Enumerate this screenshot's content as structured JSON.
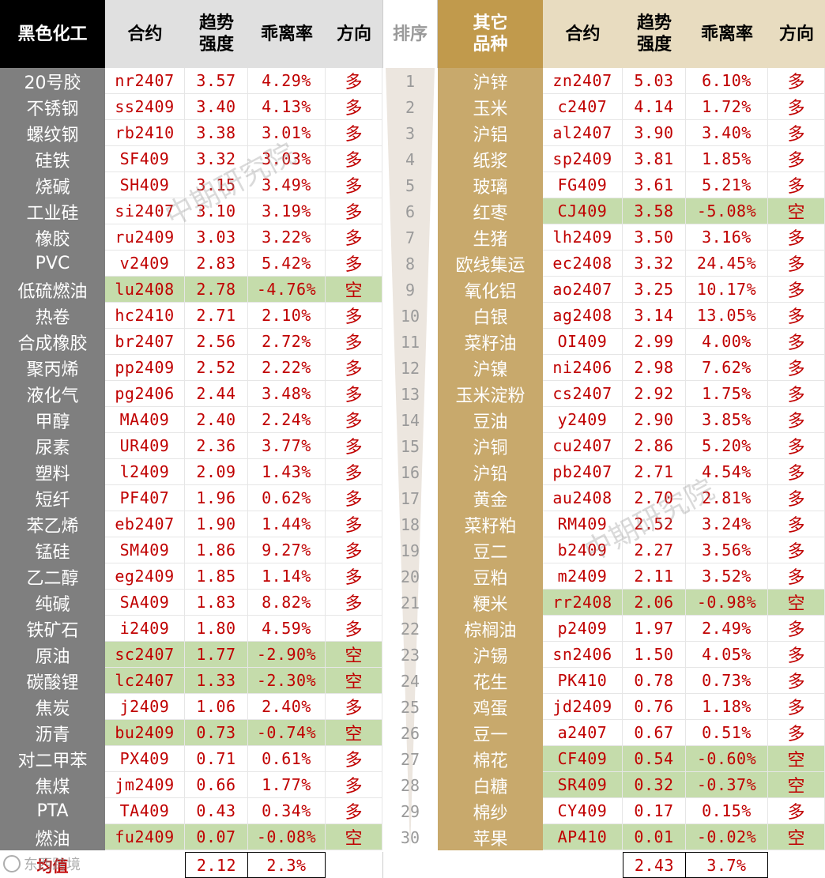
{
  "headers": {
    "left_category": "黑色化工",
    "contract": "合约",
    "strength_line1": "趋势",
    "strength_line2": "强度",
    "deviation": "乖离率",
    "direction": "方向",
    "rank": "排序",
    "right_category_line1": "其它",
    "right_category_line2": "品种"
  },
  "colors": {
    "left_header_bg": "#000000",
    "left_name_bg": "#7f7f7f",
    "right_header_bg": "#c19a4c",
    "right_name_bg": "#c8a96c",
    "short_highlight": "#c5dcab",
    "value_text": "#c00000"
  },
  "rows": [
    {
      "rank": "1",
      "l_name": "20号胶",
      "l_code": "nr2407",
      "l_str": "3.57",
      "l_dev": "4.29%",
      "l_dir": "多",
      "l_short": false,
      "r_name": "沪锌",
      "r_code": "zn2407",
      "r_str": "5.03",
      "r_dev": "6.10%",
      "r_dir": "多",
      "r_short": false
    },
    {
      "rank": "2",
      "l_name": "不锈钢",
      "l_code": "ss2409",
      "l_str": "3.40",
      "l_dev": "4.13%",
      "l_dir": "多",
      "l_short": false,
      "r_name": "玉米",
      "r_code": "c2407",
      "r_str": "4.14",
      "r_dev": "1.72%",
      "r_dir": "多",
      "r_short": false
    },
    {
      "rank": "3",
      "l_name": "螺纹钢",
      "l_code": "rb2410",
      "l_str": "3.38",
      "l_dev": "3.01%",
      "l_dir": "多",
      "l_short": false,
      "r_name": "沪铝",
      "r_code": "al2407",
      "r_str": "3.90",
      "r_dev": "3.40%",
      "r_dir": "多",
      "r_short": false
    },
    {
      "rank": "4",
      "l_name": "硅铁",
      "l_code": "SF409",
      "l_str": "3.32",
      "l_dev": "3.03%",
      "l_dir": "多",
      "l_short": false,
      "r_name": "纸浆",
      "r_code": "sp2409",
      "r_str": "3.81",
      "r_dev": "1.85%",
      "r_dir": "多",
      "r_short": false
    },
    {
      "rank": "5",
      "l_name": "烧碱",
      "l_code": "SH409",
      "l_str": "3.15",
      "l_dev": "3.49%",
      "l_dir": "多",
      "l_short": false,
      "r_name": "玻璃",
      "r_code": "FG409",
      "r_str": "3.61",
      "r_dev": "5.21%",
      "r_dir": "多",
      "r_short": false
    },
    {
      "rank": "6",
      "l_name": "工业硅",
      "l_code": "si2407",
      "l_str": "3.10",
      "l_dev": "3.19%",
      "l_dir": "多",
      "l_short": false,
      "r_name": "红枣",
      "r_code": "CJ409",
      "r_str": "3.58",
      "r_dev": "-5.08%",
      "r_dir": "空",
      "r_short": true
    },
    {
      "rank": "7",
      "l_name": "橡胶",
      "l_code": "ru2409",
      "l_str": "3.03",
      "l_dev": "3.22%",
      "l_dir": "多",
      "l_short": false,
      "r_name": "生猪",
      "r_code": "lh2409",
      "r_str": "3.50",
      "r_dev": "3.16%",
      "r_dir": "多",
      "r_short": false
    },
    {
      "rank": "8",
      "l_name": "PVC",
      "l_code": "v2409",
      "l_str": "2.83",
      "l_dev": "5.42%",
      "l_dir": "多",
      "l_short": false,
      "r_name": "欧线集运",
      "r_code": "ec2408",
      "r_str": "3.32",
      "r_dev": "24.45%",
      "r_dir": "多",
      "r_short": false
    },
    {
      "rank": "9",
      "l_name": "低硫燃油",
      "l_code": "lu2408",
      "l_str": "2.78",
      "l_dev": "-4.76%",
      "l_dir": "空",
      "l_short": true,
      "r_name": "氧化铝",
      "r_code": "ao2407",
      "r_str": "3.25",
      "r_dev": "10.17%",
      "r_dir": "多",
      "r_short": false
    },
    {
      "rank": "10",
      "l_name": "热卷",
      "l_code": "hc2410",
      "l_str": "2.71",
      "l_dev": "2.10%",
      "l_dir": "多",
      "l_short": false,
      "r_name": "白银",
      "r_code": "ag2408",
      "r_str": "3.14",
      "r_dev": "13.05%",
      "r_dir": "多",
      "r_short": false
    },
    {
      "rank": "11",
      "l_name": "合成橡胶",
      "l_code": "br2407",
      "l_str": "2.56",
      "l_dev": "2.72%",
      "l_dir": "多",
      "l_short": false,
      "r_name": "菜籽油",
      "r_code": "OI409",
      "r_str": "2.99",
      "r_dev": "4.00%",
      "r_dir": "多",
      "r_short": false
    },
    {
      "rank": "12",
      "l_name": "聚丙烯",
      "l_code": "pp2409",
      "l_str": "2.52",
      "l_dev": "2.22%",
      "l_dir": "多",
      "l_short": false,
      "r_name": "沪镍",
      "r_code": "ni2406",
      "r_str": "2.98",
      "r_dev": "7.62%",
      "r_dir": "多",
      "r_short": false
    },
    {
      "rank": "13",
      "l_name": "液化气",
      "l_code": "pg2406",
      "l_str": "2.44",
      "l_dev": "3.48%",
      "l_dir": "多",
      "l_short": false,
      "r_name": "玉米淀粉",
      "r_code": "cs2407",
      "r_str": "2.92",
      "r_dev": "1.75%",
      "r_dir": "多",
      "r_short": false
    },
    {
      "rank": "14",
      "l_name": "甲醇",
      "l_code": "MA409",
      "l_str": "2.40",
      "l_dev": "2.24%",
      "l_dir": "多",
      "l_short": false,
      "r_name": "豆油",
      "r_code": "y2409",
      "r_str": "2.90",
      "r_dev": "3.85%",
      "r_dir": "多",
      "r_short": false
    },
    {
      "rank": "15",
      "l_name": "尿素",
      "l_code": "UR409",
      "l_str": "2.36",
      "l_dev": "3.77%",
      "l_dir": "多",
      "l_short": false,
      "r_name": "沪铜",
      "r_code": "cu2407",
      "r_str": "2.86",
      "r_dev": "5.20%",
      "r_dir": "多",
      "r_short": false
    },
    {
      "rank": "16",
      "l_name": "塑料",
      "l_code": "l2409",
      "l_str": "2.09",
      "l_dev": "1.43%",
      "l_dir": "多",
      "l_short": false,
      "r_name": "沪铅",
      "r_code": "pb2407",
      "r_str": "2.71",
      "r_dev": "4.54%",
      "r_dir": "多",
      "r_short": false
    },
    {
      "rank": "17",
      "l_name": "短纤",
      "l_code": "PF407",
      "l_str": "1.96",
      "l_dev": "0.62%",
      "l_dir": "多",
      "l_short": false,
      "r_name": "黄金",
      "r_code": "au2408",
      "r_str": "2.70",
      "r_dev": "2.81%",
      "r_dir": "多",
      "r_short": false
    },
    {
      "rank": "18",
      "l_name": "苯乙烯",
      "l_code": "eb2407",
      "l_str": "1.90",
      "l_dev": "1.44%",
      "l_dir": "多",
      "l_short": false,
      "r_name": "菜籽粕",
      "r_code": "RM409",
      "r_str": "2.52",
      "r_dev": "3.24%",
      "r_dir": "多",
      "r_short": false
    },
    {
      "rank": "19",
      "l_name": "锰硅",
      "l_code": "SM409",
      "l_str": "1.86",
      "l_dev": "9.27%",
      "l_dir": "多",
      "l_short": false,
      "r_name": "豆二",
      "r_code": "b2409",
      "r_str": "2.27",
      "r_dev": "3.56%",
      "r_dir": "多",
      "r_short": false
    },
    {
      "rank": "20",
      "l_name": "乙二醇",
      "l_code": "eg2409",
      "l_str": "1.85",
      "l_dev": "1.14%",
      "l_dir": "多",
      "l_short": false,
      "r_name": "豆粕",
      "r_code": "m2409",
      "r_str": "2.11",
      "r_dev": "3.52%",
      "r_dir": "多",
      "r_short": false
    },
    {
      "rank": "21",
      "l_name": "纯碱",
      "l_code": "SA409",
      "l_str": "1.83",
      "l_dev": "8.82%",
      "l_dir": "多",
      "l_short": false,
      "r_name": "粳米",
      "r_code": "rr2408",
      "r_str": "2.06",
      "r_dev": "-0.98%",
      "r_dir": "空",
      "r_short": true
    },
    {
      "rank": "22",
      "l_name": "铁矿石",
      "l_code": "i2409",
      "l_str": "1.80",
      "l_dev": "4.59%",
      "l_dir": "多",
      "l_short": false,
      "r_name": "棕榈油",
      "r_code": "p2409",
      "r_str": "1.97",
      "r_dev": "2.49%",
      "r_dir": "多",
      "r_short": false
    },
    {
      "rank": "23",
      "l_name": "原油",
      "l_code": "sc2407",
      "l_str": "1.77",
      "l_dev": "-2.90%",
      "l_dir": "空",
      "l_short": true,
      "r_name": "沪锡",
      "r_code": "sn2406",
      "r_str": "1.50",
      "r_dev": "4.05%",
      "r_dir": "多",
      "r_short": false
    },
    {
      "rank": "24",
      "l_name": "碳酸锂",
      "l_code": "lc2407",
      "l_str": "1.33",
      "l_dev": "-2.30%",
      "l_dir": "空",
      "l_short": true,
      "r_name": "花生",
      "r_code": "PK410",
      "r_str": "0.78",
      "r_dev": "0.73%",
      "r_dir": "多",
      "r_short": false
    },
    {
      "rank": "25",
      "l_name": "焦炭",
      "l_code": "j2409",
      "l_str": "1.06",
      "l_dev": "2.40%",
      "l_dir": "多",
      "l_short": false,
      "r_name": "鸡蛋",
      "r_code": "jd2409",
      "r_str": "0.76",
      "r_dev": "1.18%",
      "r_dir": "多",
      "r_short": false
    },
    {
      "rank": "26",
      "l_name": "沥青",
      "l_code": "bu2409",
      "l_str": "0.73",
      "l_dev": "-0.74%",
      "l_dir": "空",
      "l_short": true,
      "r_name": "豆一",
      "r_code": "a2407",
      "r_str": "0.67",
      "r_dev": "0.51%",
      "r_dir": "多",
      "r_short": false
    },
    {
      "rank": "27",
      "l_name": "对二甲苯",
      "l_code": "PX409",
      "l_str": "0.71",
      "l_dev": "0.61%",
      "l_dir": "多",
      "l_short": false,
      "r_name": "棉花",
      "r_code": "CF409",
      "r_str": "0.54",
      "r_dev": "-0.60%",
      "r_dir": "空",
      "r_short": true
    },
    {
      "rank": "28",
      "l_name": "焦煤",
      "l_code": "jm2409",
      "l_str": "0.66",
      "l_dev": "1.77%",
      "l_dir": "多",
      "l_short": false,
      "r_name": "白糖",
      "r_code": "SR409",
      "r_str": "0.32",
      "r_dev": "-0.37%",
      "r_dir": "空",
      "r_short": true
    },
    {
      "rank": "29",
      "l_name": "PTA",
      "l_code": "TA409",
      "l_str": "0.43",
      "l_dev": "0.34%",
      "l_dir": "多",
      "l_short": false,
      "r_name": "棉纱",
      "r_code": "CY409",
      "r_str": "0.17",
      "r_dev": "0.15%",
      "r_dir": "多",
      "r_short": false
    },
    {
      "rank": "30",
      "l_name": "燃油",
      "l_code": "fu2409",
      "l_str": "0.07",
      "l_dev": "-0.08%",
      "l_dir": "空",
      "l_short": true,
      "r_name": "苹果",
      "r_code": "AP410",
      "r_str": "0.01",
      "r_dev": "-0.02%",
      "r_dir": "空",
      "r_short": true
    }
  ],
  "footer": {
    "label": "均值",
    "l_avg_strength": "2.12",
    "l_avg_deviation": "2.3%",
    "r_avg_strength": "2.43",
    "r_avg_deviation": "3.7%"
  },
  "watermark": {
    "text": "中期研究院",
    "corner_text": "东西跨境",
    "icon": "camera-logo-icon"
  }
}
